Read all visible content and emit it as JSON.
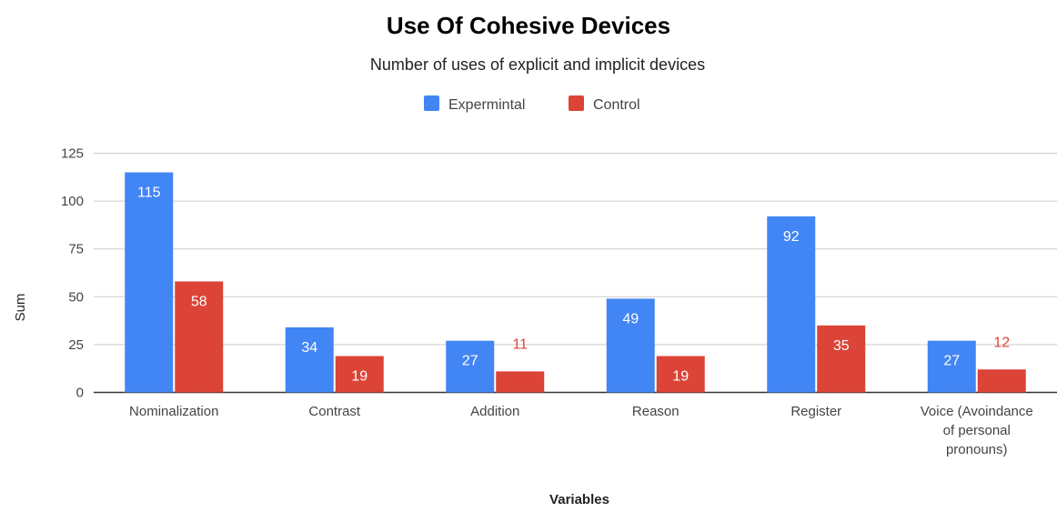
{
  "chart_data": {
    "type": "bar",
    "title": "Use Of Cohesive Devices",
    "subtitle": "Number of uses of explicit and implicit devices",
    "xlabel": "Variables",
    "ylabel": "Sum",
    "ylim": [
      0,
      125
    ],
    "yticks": [
      0,
      25,
      50,
      75,
      100,
      125
    ],
    "grid": true,
    "legend_position": "top",
    "categories": [
      [
        "Nominalization"
      ],
      [
        "Contrast"
      ],
      [
        "Addition"
      ],
      [
        "Reason"
      ],
      [
        "Register"
      ],
      [
        "Voice (Avoindance",
        "of personal",
        "pronouns)"
      ]
    ],
    "series": [
      {
        "name": "Expermintal",
        "color": "#4285f4",
        "values": [
          115,
          34,
          27,
          49,
          92,
          27
        ]
      },
      {
        "name": "Control",
        "color": "#db4437",
        "values": [
          58,
          19,
          11,
          19,
          35,
          12
        ]
      }
    ]
  }
}
